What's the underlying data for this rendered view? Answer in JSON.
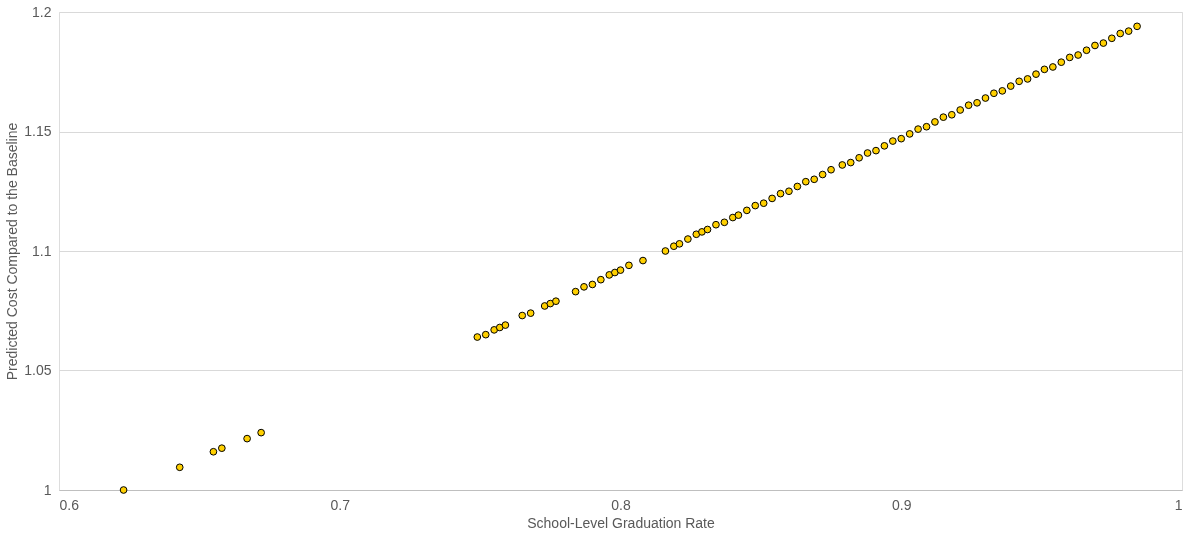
{
  "chart_data": {
    "type": "scatter",
    "xlabel": "School-Level Graduation Rate",
    "ylabel": "Predicted Cost Compared to the Baseline",
    "xlim": [
      0.6,
      1
    ],
    "xticks": [
      0.6,
      0.7,
      0.8,
      0.9,
      1
    ],
    "ylim": [
      1,
      1.2
    ],
    "yticks": [
      1,
      1.05,
      1.1,
      1.15,
      1.2
    ],
    "grid": "y",
    "marker": "circle",
    "series": [
      {
        "color": "#ffd000",
        "x": [
          0.623,
          0.643,
          0.655,
          0.658,
          0.667,
          0.672,
          0.749,
          0.752,
          0.755,
          0.757,
          0.759,
          0.765,
          0.768,
          0.773,
          0.775,
          0.777,
          0.784,
          0.787,
          0.79,
          0.793,
          0.796,
          0.798,
          0.8,
          0.803,
          0.808,
          0.816,
          0.819,
          0.821,
          0.824,
          0.827,
          0.829,
          0.831,
          0.834,
          0.837,
          0.84,
          0.842,
          0.845,
          0.848,
          0.851,
          0.854,
          0.857,
          0.86,
          0.863,
          0.866,
          0.869,
          0.872,
          0.875,
          0.879,
          0.882,
          0.885,
          0.888,
          0.891,
          0.894,
          0.897,
          0.9,
          0.903,
          0.906,
          0.909,
          0.912,
          0.915,
          0.918,
          0.921,
          0.924,
          0.927,
          0.93,
          0.933,
          0.936,
          0.939,
          0.942,
          0.945,
          0.948,
          0.951,
          0.954,
          0.957,
          0.96,
          0.963,
          0.966,
          0.969,
          0.972,
          0.975,
          0.978,
          0.981,
          0.984
        ],
        "values": [
          1.0,
          1.0095,
          1.016,
          1.0175,
          1.0215,
          1.024,
          1.064,
          1.065,
          1.067,
          1.068,
          1.069,
          1.073,
          1.074,
          1.077,
          1.078,
          1.079,
          1.083,
          1.085,
          1.086,
          1.088,
          1.09,
          1.091,
          1.092,
          1.094,
          1.096,
          1.1,
          1.102,
          1.103,
          1.105,
          1.107,
          1.108,
          1.109,
          1.111,
          1.112,
          1.114,
          1.115,
          1.117,
          1.119,
          1.12,
          1.122,
          1.124,
          1.125,
          1.127,
          1.129,
          1.13,
          1.132,
          1.134,
          1.136,
          1.137,
          1.139,
          1.141,
          1.142,
          1.144,
          1.146,
          1.147,
          1.149,
          1.151,
          1.152,
          1.154,
          1.156,
          1.157,
          1.159,
          1.161,
          1.162,
          1.164,
          1.166,
          1.167,
          1.169,
          1.171,
          1.172,
          1.174,
          1.176,
          1.177,
          1.179,
          1.181,
          1.182,
          1.184,
          1.186,
          1.187,
          1.189,
          1.191,
          1.192,
          1.194
        ]
      }
    ]
  }
}
